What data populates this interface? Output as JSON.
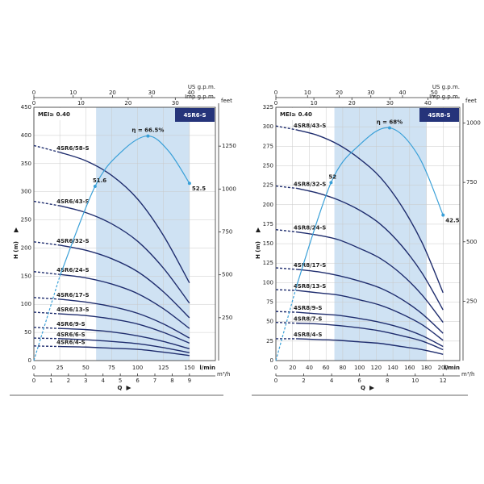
{
  "chart_data": [
    {
      "type": "line",
      "title": "4SR6-S",
      "subtitle": "MEI≥ 0.40",
      "y_label": "H (m)",
      "x_label": "Q",
      "x_unit": "l/min",
      "x": [
        0,
        25,
        50,
        75,
        100,
        125,
        150
      ],
      "xlim": [
        0,
        175
      ],
      "xticks": [
        0,
        25,
        50,
        75,
        100,
        125,
        150
      ],
      "ylim": [
        0,
        450
      ],
      "yticks": [
        0,
        50,
        100,
        150,
        200,
        250,
        300,
        350,
        400,
        450
      ],
      "grid": true,
      "highlight_range": [
        60,
        150
      ],
      "series": [
        {
          "name": "4SR6/58-S",
          "color": "#1f2d6e",
          "values": [
            382,
            370,
            355,
            329,
            287,
            222,
            138
          ]
        },
        {
          "name": "4SR6/43-S",
          "color": "#1f2d6e",
          "values": [
            283,
            275,
            263,
            243,
            212,
            164,
            102
          ]
        },
        {
          "name": "4SR6/32-S",
          "color": "#1f2d6e",
          "values": [
            211,
            205,
            196,
            181,
            158,
            122,
            76
          ]
        },
        {
          "name": "4SR6/24-S",
          "color": "#1f2d6e",
          "values": [
            158,
            153,
            147,
            136,
            119,
            92,
            57
          ]
        },
        {
          "name": "4SR6/17-S",
          "color": "#1f2d6e",
          "values": [
            112,
            109,
            104,
            96,
            84,
            65,
            40
          ]
        },
        {
          "name": "4SR6/13-S",
          "color": "#1f2d6e",
          "values": [
            86,
            83,
            80,
            74,
            65,
            50,
            31
          ]
        },
        {
          "name": "4SR6/9-S",
          "color": "#1f2d6e",
          "values": [
            59,
            57,
            55,
            51,
            44,
            34,
            21
          ]
        },
        {
          "name": "4SR6/6-S",
          "color": "#1f2d6e",
          "values": [
            40,
            39,
            37,
            34,
            30,
            23,
            14
          ]
        },
        {
          "name": "4SR6/4-S",
          "color": "#1f2d6e",
          "values": [
            26,
            25,
            24,
            22,
            20,
            15,
            9
          ]
        }
      ],
      "efficiency": {
        "color": "#3aa0d8",
        "axis": "y2",
        "y2lim": [
          0,
          75
        ],
        "x": [
          0,
          25,
          59,
          85,
          110,
          130,
          150
        ],
        "values": [
          0,
          25,
          51.6,
          62,
          66.5,
          62,
          52.5
        ],
        "value_labels": [
          null,
          null,
          "51.6",
          null,
          "η = 66.5%",
          null,
          "52.5"
        ]
      },
      "top_axes": [
        {
          "label": "US g.p.m.",
          "xlim": [
            0,
            46.2
          ],
          "xticks": [
            0,
            10,
            20,
            30,
            40
          ]
        },
        {
          "label": "Imp g.p.m.",
          "xlim": [
            0,
            38.5
          ],
          "xticks": [
            0,
            10,
            20,
            30
          ]
        }
      ],
      "bottom_axis": {
        "label": "m³/h",
        "xlim": [
          0,
          10.5
        ],
        "xticks": [
          0,
          1,
          2,
          3,
          4,
          5,
          6,
          7,
          8,
          9
        ]
      },
      "right_axis": {
        "label": "feet",
        "ylim": [
          0,
          1476.4
        ],
        "yticks": [
          250,
          500,
          750,
          1000,
          1250
        ]
      }
    },
    {
      "type": "line",
      "title": "4SR8-S",
      "subtitle": "MEI≥ 0.40",
      "y_label": "H (m)",
      "x_label": "Q",
      "x_unit": "l/min",
      "x": [
        0,
        25,
        50,
        75,
        100,
        125,
        150,
        175,
        200
      ],
      "xlim": [
        0,
        220
      ],
      "xticks": [
        0,
        20,
        40,
        60,
        80,
        100,
        120,
        140,
        160,
        180,
        200
      ],
      "ylim": [
        0,
        325
      ],
      "yticks": [
        0,
        25,
        50,
        75,
        100,
        125,
        150,
        175,
        200,
        225,
        250,
        275,
        300,
        325
      ],
      "grid": true,
      "highlight_range": [
        70,
        180
      ],
      "series": [
        {
          "name": "4SR8/43-S",
          "color": "#1f2d6e",
          "values": [
            301,
            296,
            289,
            277,
            259,
            235,
            199,
            151,
            87
          ]
        },
        {
          "name": "4SR8/32-S",
          "color": "#1f2d6e",
          "values": [
            224,
            221,
            215,
            206,
            193,
            175,
            148,
            112,
            65
          ]
        },
        {
          "name": "4SR8/24-S",
          "color": "#1f2d6e",
          "values": [
            168,
            165,
            161,
            155,
            144,
            131,
            111,
            84,
            49
          ]
        },
        {
          "name": "4SR8/17-S",
          "color": "#1f2d6e",
          "values": [
            119,
            117,
            114,
            109,
            102,
            93,
            79,
            60,
            35
          ]
        },
        {
          "name": "4SR8/13-S",
          "color": "#1f2d6e",
          "values": [
            91,
            90,
            87,
            84,
            78,
            71,
            60,
            46,
            26
          ]
        },
        {
          "name": "4SR8/9-S",
          "color": "#1f2d6e",
          "values": [
            63,
            62,
            60,
            58,
            54,
            49,
            42,
            32,
            18
          ]
        },
        {
          "name": "4SR8/7-S",
          "color": "#1f2d6e",
          "values": [
            49,
            48,
            47,
            45,
            42,
            38,
            32,
            25,
            14
          ]
        },
        {
          "name": "4SR8/4-S",
          "color": "#1f2d6e",
          "values": [
            28,
            28,
            27,
            26,
            24,
            22,
            18,
            14,
            8
          ]
        }
      ],
      "efficiency": {
        "color": "#3aa0d8",
        "axis": "y2",
        "y2lim": [
          0,
          74
        ],
        "x": [
          0,
          25,
          66,
          100,
          136,
          170,
          200
        ],
        "values": [
          0,
          22,
          52,
          63,
          68,
          60,
          42.5
        ],
        "value_labels": [
          null,
          null,
          "52",
          null,
          "η = 68%",
          null,
          "42.5"
        ]
      },
      "top_axes": [
        {
          "label": "US g.p.m.",
          "xlim": [
            0,
            58.1
          ],
          "xticks": [
            0,
            10,
            20,
            30,
            40,
            50
          ]
        },
        {
          "label": "Imp g.p.m.",
          "xlim": [
            0,
            48.4
          ],
          "xticks": [
            0,
            10,
            20,
            30,
            40
          ]
        }
      ],
      "bottom_axis": {
        "label": "m³/h",
        "xlim": [
          0,
          13.2
        ],
        "xticks": [
          0,
          2,
          4,
          6,
          8,
          10,
          12
        ]
      },
      "right_axis": {
        "label": "feet",
        "ylim": [
          0,
          1066.3
        ],
        "yticks": [
          250,
          500,
          750,
          1000
        ]
      }
    }
  ]
}
